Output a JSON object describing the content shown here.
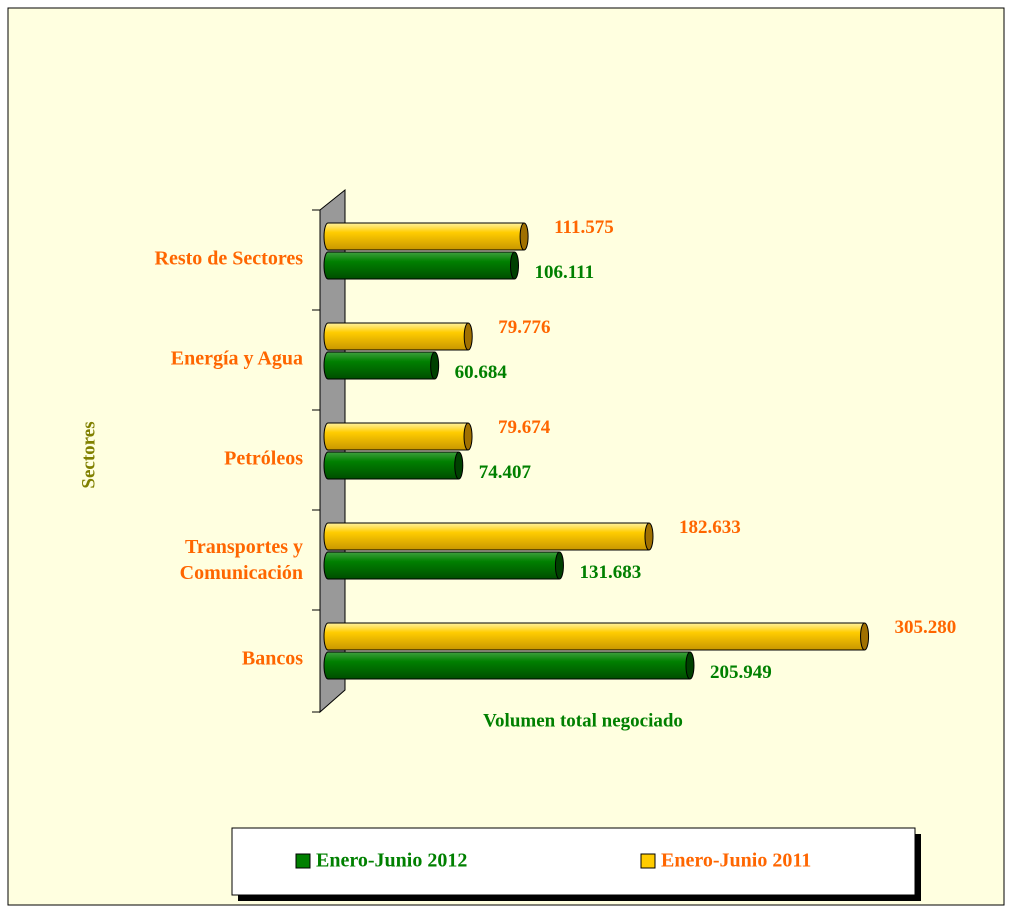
{
  "chart_data": {
    "type": "hbar3d",
    "y_axis_label": "Sectores",
    "x_axis_label": "Volumen total negociado",
    "categories": [
      "Resto de Sectores",
      "Energía y Agua",
      "Petróleos",
      "Transportes y Comunicación",
      "Bancos"
    ],
    "series": [
      {
        "name": "Enero-Junio 2012",
        "color": "#008000",
        "values": [
          106111,
          60684,
          74407,
          131683,
          205949
        ],
        "value_labels": [
          "106.111",
          "60.684",
          "74.407",
          "131.683",
          "205.949"
        ]
      },
      {
        "name": "Enero-Junio 2011",
        "color": "#ffcc00",
        "values": [
          111575,
          79776,
          79674,
          182633,
          305280
        ],
        "value_labels": [
          "111.575",
          "79.776",
          "79.674",
          "182.633",
          "305.280"
        ]
      }
    ],
    "xlim": [
      0,
      330000
    ],
    "legend": "bottom"
  }
}
